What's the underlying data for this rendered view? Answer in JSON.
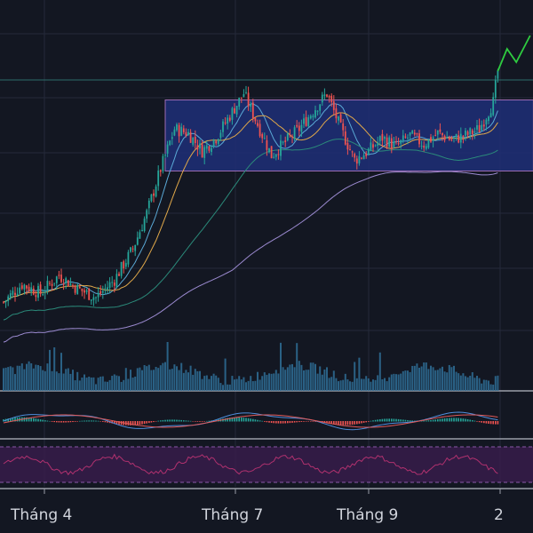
{
  "chart_data": {
    "type": "candlestick",
    "title": "",
    "xlabel": "",
    "ylabel": "",
    "x_tick_labels": [
      "Tháng 4",
      "Tháng 7",
      "Tháng 9",
      "2"
    ],
    "grid": true,
    "panes": [
      "price",
      "volume",
      "macd",
      "rsi"
    ],
    "price": {
      "trend": [
        {
          "d": 0,
          "v": 72
        },
        {
          "d": 8,
          "v": 80
        },
        {
          "d": 16,
          "v": 76
        },
        {
          "d": 24,
          "v": 84
        },
        {
          "d": 32,
          "v": 78
        },
        {
          "d": 40,
          "v": 74
        },
        {
          "d": 48,
          "v": 82
        },
        {
          "d": 56,
          "v": 96
        },
        {
          "d": 62,
          "v": 112
        },
        {
          "d": 68,
          "v": 132
        },
        {
          "d": 74,
          "v": 150
        },
        {
          "d": 80,
          "v": 148
        },
        {
          "d": 86,
          "v": 140
        },
        {
          "d": 92,
          "v": 146
        },
        {
          "d": 98,
          "v": 156
        },
        {
          "d": 104,
          "v": 166
        },
        {
          "d": 110,
          "v": 152
        },
        {
          "d": 116,
          "v": 138
        },
        {
          "d": 122,
          "v": 144
        },
        {
          "d": 128,
          "v": 150
        },
        {
          "d": 134,
          "v": 158
        },
        {
          "d": 140,
          "v": 166
        },
        {
          "d": 146,
          "v": 150
        },
        {
          "d": 152,
          "v": 136
        },
        {
          "d": 158,
          "v": 140
        },
        {
          "d": 164,
          "v": 146
        },
        {
          "d": 170,
          "v": 142
        },
        {
          "d": 176,
          "v": 147
        },
        {
          "d": 182,
          "v": 143
        },
        {
          "d": 188,
          "v": 148
        },
        {
          "d": 194,
          "v": 145
        },
        {
          "d": 200,
          "v": 147
        },
        {
          "d": 206,
          "v": 150
        },
        {
          "d": 212,
          "v": 162
        },
        {
          "d": 214,
          "v": 176
        }
      ],
      "ranges": [
        {
          "name": "price",
          "min": 40,
          "max": 200
        },
        {
          "name": "rsi",
          "min": 0,
          "max": 100
        }
      ],
      "consolidation_box": {
        "d_start": 70,
        "d_end": 214,
        "low": 131,
        "high": 163
      },
      "projection": [
        {
          "d": 214,
          "v": 176
        },
        {
          "d": 218,
          "v": 186
        },
        {
          "d": 222,
          "v": 180
        },
        {
          "d": 228,
          "v": 192
        }
      ]
    },
    "rsi_levels": [
      70,
      30
    ],
    "colors": {
      "up": "#26a69a",
      "down": "#ef5350",
      "box_fill": "#1e2f78",
      "box_border": "#9c6bb3",
      "projection": "#2ecc40",
      "volume": "#2f6f96",
      "rsi_band": "#3a1d4d",
      "rsi_line": "#b0316e"
    }
  }
}
